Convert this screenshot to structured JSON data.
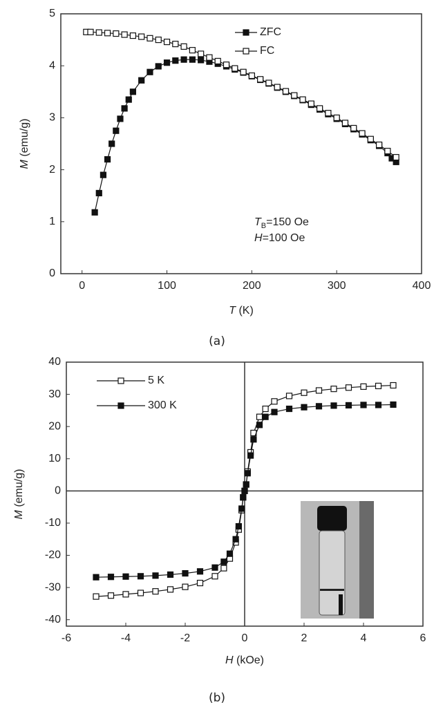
{
  "chart_data": [
    {
      "type": "line",
      "caption": "(a)",
      "x_label": {
        "italic": "T",
        "text": " (K)"
      },
      "y_label": {
        "italic": "M",
        "text": " (emu/g)"
      },
      "xlim": [
        -25,
        400
      ],
      "ylim": [
        0,
        5
      ],
      "xticks": [
        0,
        100,
        200,
        300,
        400
      ],
      "yticks": [
        0,
        1,
        2,
        3,
        4,
        5
      ],
      "legend": "upper right",
      "annotations": [
        {
          "italic": "T",
          "sub": "B",
          "text": "=150 Oe"
        },
        {
          "italic": "H",
          "text": "=100 Oe"
        }
      ],
      "series": [
        {
          "name": "ZFC",
          "color": "#111111",
          "filled": true,
          "x": [
            15,
            20,
            25,
            30,
            35,
            40,
            45,
            50,
            55,
            60,
            70,
            80,
            90,
            100,
            110,
            120,
            130,
            140,
            150,
            160,
            170,
            180,
            190,
            200,
            210,
            220,
            230,
            240,
            250,
            260,
            270,
            280,
            290,
            300,
            310,
            320,
            330,
            340,
            350,
            360,
            365,
            370
          ],
          "values": [
            1.18,
            1.55,
            1.9,
            2.2,
            2.5,
            2.75,
            2.98,
            3.18,
            3.35,
            3.5,
            3.72,
            3.88,
            3.99,
            4.06,
            4.1,
            4.12,
            4.12,
            4.11,
            4.08,
            4.04,
            3.99,
            3.93,
            3.87,
            3.8,
            3.73,
            3.66,
            3.58,
            3.5,
            3.42,
            3.34,
            3.25,
            3.16,
            3.07,
            2.98,
            2.88,
            2.78,
            2.68,
            2.57,
            2.46,
            2.32,
            2.22,
            2.15
          ]
        },
        {
          "name": "FC",
          "color": "#111111",
          "filled": false,
          "x": [
            5,
            10,
            20,
            30,
            40,
            50,
            60,
            70,
            80,
            90,
            100,
            110,
            120,
            130,
            140,
            150,
            160,
            170,
            180,
            190,
            200,
            210,
            220,
            230,
            240,
            250,
            260,
            270,
            280,
            290,
            300,
            310,
            320,
            330,
            340,
            350,
            360,
            370
          ],
          "values": [
            4.65,
            4.65,
            4.64,
            4.63,
            4.62,
            4.6,
            4.58,
            4.56,
            4.53,
            4.5,
            4.46,
            4.42,
            4.37,
            4.3,
            4.23,
            4.16,
            4.09,
            4.02,
            3.95,
            3.88,
            3.81,
            3.74,
            3.67,
            3.59,
            3.51,
            3.43,
            3.35,
            3.27,
            3.18,
            3.09,
            3.0,
            2.9,
            2.8,
            2.7,
            2.59,
            2.48,
            2.36,
            2.24
          ]
        }
      ]
    },
    {
      "type": "line",
      "caption": "(b)",
      "x_label": {
        "italic": "H",
        "text": " (kOe)"
      },
      "y_label": {
        "italic": "M",
        "text": " (emu/g)"
      },
      "xlim": [
        -6,
        6
      ],
      "ylim": [
        -42,
        40
      ],
      "xticks": [
        -6,
        -4,
        -2,
        0,
        2,
        4,
        6
      ],
      "yticks": [
        -40,
        -30,
        -20,
        -10,
        0,
        10,
        20,
        30,
        40
      ],
      "legend": "upper left",
      "zero_lines": true,
      "series": [
        {
          "name": "5 K",
          "color": "#111111",
          "filled": false,
          "x": [
            -5,
            -4.5,
            -4,
            -3.5,
            -3,
            -2.5,
            -2,
            -1.5,
            -1,
            -0.7,
            -0.5,
            -0.3,
            -0.2,
            -0.1,
            -0.05,
            0,
            0.05,
            0.1,
            0.2,
            0.3,
            0.5,
            0.7,
            1,
            1.5,
            2,
            2.5,
            3,
            3.5,
            4,
            4.5,
            5
          ],
          "values": [
            -32.8,
            -32.5,
            -32.1,
            -31.7,
            -31.2,
            -30.6,
            -29.8,
            -28.6,
            -26.5,
            -24,
            -21,
            -16,
            -12,
            -6,
            -2,
            0,
            2,
            6,
            12,
            18,
            23,
            25.5,
            27.8,
            29.5,
            30.5,
            31.2,
            31.7,
            32.1,
            32.4,
            32.6,
            32.8
          ]
        },
        {
          "name": "300 K",
          "color": "#111111",
          "filled": true,
          "x": [
            -5,
            -4.5,
            -4,
            -3.5,
            -3,
            -2.5,
            -2,
            -1.5,
            -1,
            -0.7,
            -0.5,
            -0.3,
            -0.2,
            -0.1,
            -0.05,
            0,
            0.05,
            0.1,
            0.2,
            0.3,
            0.5,
            0.7,
            1,
            1.5,
            2,
            2.5,
            3,
            3.5,
            4,
            4.5,
            5
          ],
          "values": [
            -26.8,
            -26.7,
            -26.6,
            -26.5,
            -26.3,
            -26.0,
            -25.6,
            -25.0,
            -23.8,
            -22,
            -19.5,
            -15,
            -11,
            -5.5,
            -2,
            0,
            2,
            5.5,
            11,
            16,
            20.5,
            23.0,
            24.5,
            25.5,
            26,
            26.3,
            26.5,
            26.6,
            26.7,
            26.7,
            26.8
          ]
        }
      ]
    }
  ]
}
